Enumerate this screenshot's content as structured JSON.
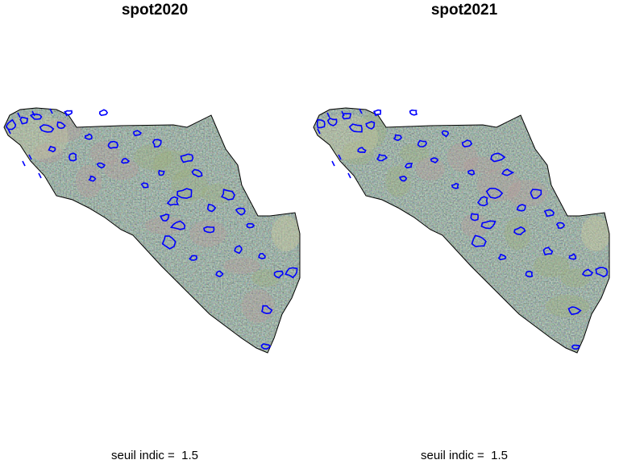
{
  "panels": [
    {
      "title": "spot2020",
      "caption": "seuil indic =  1.5"
    },
    {
      "title": "spot2021",
      "caption": "seuil indic =  1.5"
    }
  ],
  "colors": {
    "contour": "#0000ff",
    "boundary": "#000000",
    "imagery_dark": "#3a4a3a",
    "imagery_light": "#c8c8a0"
  }
}
